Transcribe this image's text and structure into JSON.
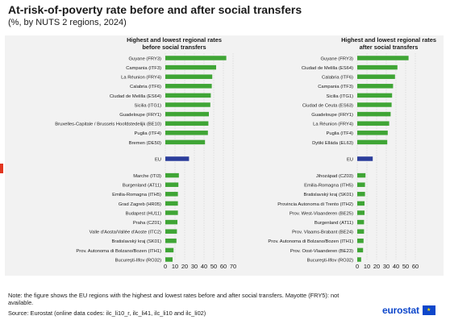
{
  "title": "At-risk-of-poverty rate before and after social transfers",
  "subtitle": "(%, by NUTS 2 regions, 2024)",
  "note": "Note: the figure shows the EU regions with the highest and lowest rates before and after social transfers. Mayotte (FRY5): not available.",
  "source": "Source: Eurostat (online data codes: ilc_li10_r, ilc_li41, ilc_li10 and ilc_li02)",
  "logo": {
    "text": "eurostat",
    "icon": "eu-flag-icon"
  },
  "colors": {
    "bar": "#3fa535",
    "eu_bar": "#2b3d9b",
    "grid": "#d0d0d0",
    "panel": "#f2f2f2"
  },
  "chart_data": [
    {
      "type": "bar",
      "orientation": "horizontal",
      "title": "Highest and lowest regional rates before social transfers",
      "xlim": [
        0,
        70
      ],
      "xticks": [
        0,
        10,
        20,
        30,
        40,
        50,
        60,
        70
      ],
      "grid": true,
      "categories": [
        "Guyane (FRY3)",
        "Campania (ITF3)",
        "La Réunion (FRY4)",
        "Calabria (ITF6)",
        "Ciudad de Melilla (ES64)",
        "Sicilia (ITG1)",
        "Guadeloupe (FRY1)",
        "Bruxelles-Capitale / Brussels Hoofdstedelijk (BE10)",
        "Puglia (ITF4)",
        "Bremen (DE50)",
        "EU",
        "Marche (ITI3)",
        "Burgenland (AT11)",
        "Emilia-Romagna (ITH5)",
        "Grad Zagreb (HR05)",
        "Budapest (HU11)",
        "Praha (CZ01)",
        "Valle d'Aosta/Vallée d'Aoste (ITC2)",
        "Bratislavský kraj (SK01)",
        "Prov. Autonoma di Bolzano/Bozen (ITH1)",
        "Bucureşti-Ilfov (RO32)"
      ],
      "values": [
        63,
        52.5,
        48.5,
        48,
        47,
        46.5,
        45,
        44.5,
        44,
        41,
        24.5,
        14,
        13.5,
        13,
        13,
        13,
        12.5,
        12,
        11.5,
        8.5,
        7.5
      ]
    },
    {
      "type": "bar",
      "orientation": "horizontal",
      "title": "Highest and lowest regional rates after social transfers",
      "xlim": [
        0,
        60
      ],
      "xticks": [
        0,
        10,
        20,
        30,
        40,
        50,
        60
      ],
      "grid": true,
      "categories": [
        "Guyane (FRY3)",
        "Ciudad de Melilla (ES64)",
        "Calabria (ITF6)",
        "Campania (ITF3)",
        "Sicilia (ITG1)",
        "Ciudad de Ceuta (ES63)",
        "Guadeloupe (FRY1)",
        "La Réunion (FRY4)",
        "Puglia (ITF4)",
        "Dytiki Elláda (EL63)",
        "EU",
        "Jihozápad (CZ03)",
        "Emilia-Romagna (ITH5)",
        "Bratislavský kraj (SK01)",
        "Provincia Autonoma di Trento (ITH2)",
        "Prov. West-Vlaanderen (BE25)",
        "Burgenland (AT11)",
        "Prov. Vlaams-Brabant (BE24)",
        "Prov. Autonoma di Bolzano/Bozen (ITH1)",
        "Prov. Oost-Vlaanderen (BE23)",
        "Bucureşti-Ilfov (RO32)"
      ],
      "values": [
        53,
        41.5,
        39,
        37,
        36,
        35.5,
        34.5,
        33,
        31.5,
        31,
        16,
        8.5,
        8,
        8,
        7.5,
        7.5,
        7,
        7,
        6.5,
        6,
        4
      ]
    }
  ]
}
